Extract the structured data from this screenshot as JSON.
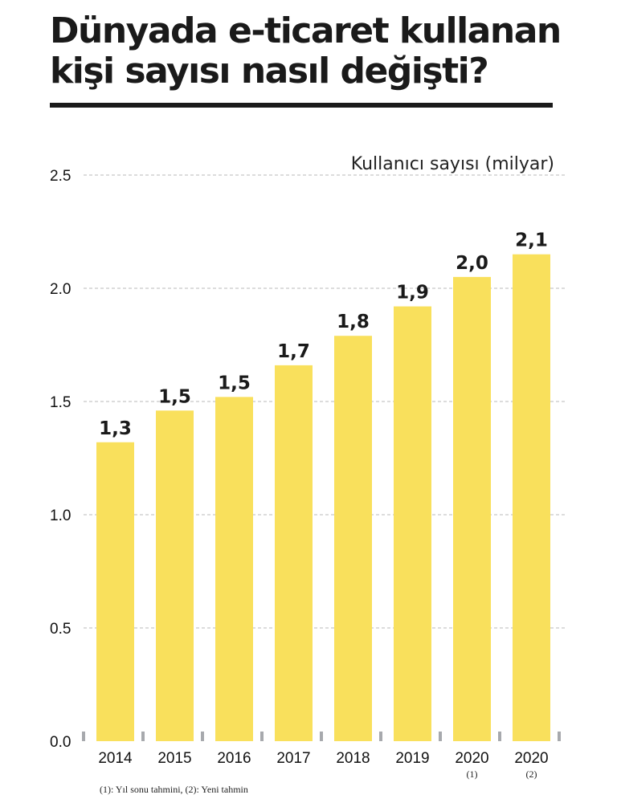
{
  "title": "Dünyada e-ticaret kullanan kişi sayısı nasıl değişti?",
  "footnote": "(1): Yıl sonu tahmini, (2): Yeni tahmin",
  "colors": {
    "bar": "#f9e05c",
    "grid": "#b8b8b8",
    "text": "#1a1a1a",
    "stub": "#a7a9ad"
  },
  "chart_data": {
    "type": "bar",
    "ylabel": "Kullanıcı sayısı (milyar)",
    "ylim": [
      0,
      2.5
    ],
    "yticks": [
      "0.0",
      "0.5",
      "1.0",
      "1.5",
      "2.0",
      "2.5"
    ],
    "grid": true,
    "categories": [
      {
        "label": "2014",
        "sub": ""
      },
      {
        "label": "2015",
        "sub": ""
      },
      {
        "label": "2016",
        "sub": ""
      },
      {
        "label": "2017",
        "sub": ""
      },
      {
        "label": "2018",
        "sub": ""
      },
      {
        "label": "2019",
        "sub": ""
      },
      {
        "label": "2020",
        "sub": "(1)"
      },
      {
        "label": "2020",
        "sub": "(2)"
      }
    ],
    "values": [
      1.32,
      1.46,
      1.52,
      1.66,
      1.79,
      1.92,
      2.05,
      2.15
    ],
    "value_labels": [
      "1,3",
      "1,5",
      "1,5",
      "1,7",
      "1,8",
      "1,9",
      "2,0",
      "2,1"
    ]
  }
}
